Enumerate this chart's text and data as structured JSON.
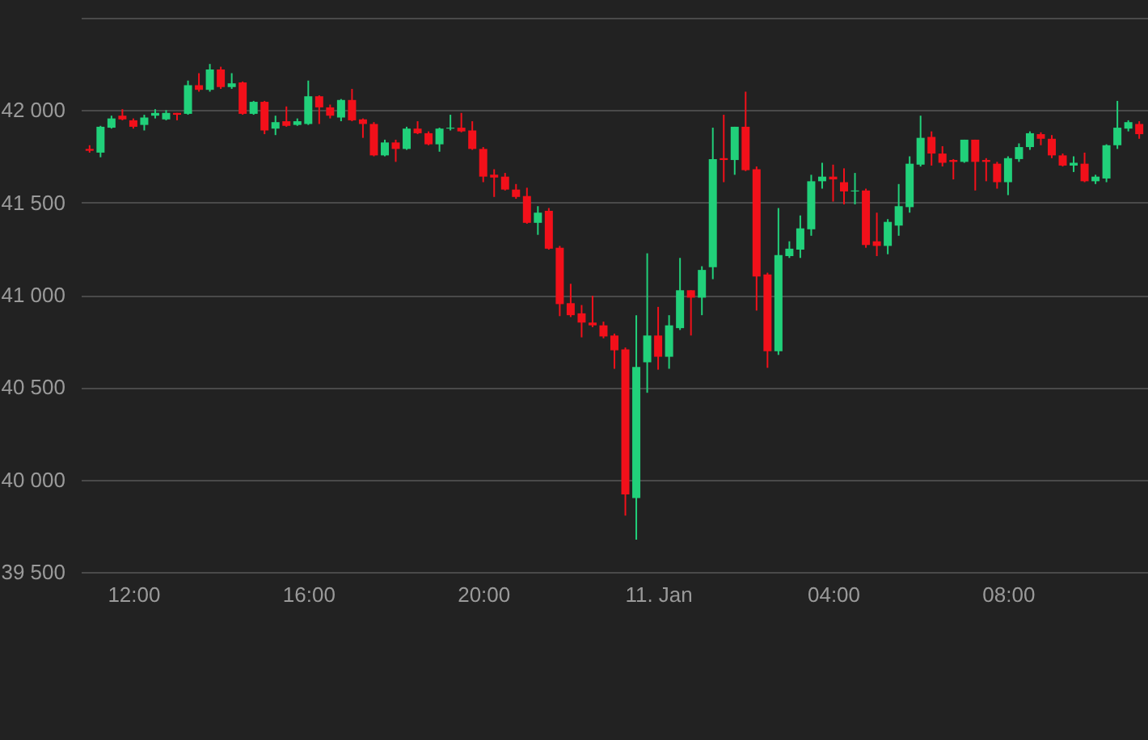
{
  "chart_data": {
    "type": "candlestick",
    "grid": "y",
    "xlim": [
      "--01-10T10:48",
      "--01-11T11:12"
    ],
    "xticks": [
      {
        "value": "--01-10T12:00",
        "label": "12:00"
      },
      {
        "value": "--01-10T16:00",
        "label": "16:00"
      },
      {
        "value": "--01-10T20:00",
        "label": "20:00"
      },
      {
        "value": "--01-11T00:00",
        "label": "11. Jan"
      },
      {
        "value": "--01-11T04:00",
        "label": "04:00"
      },
      {
        "value": "--01-11T08:00",
        "label": "08:00"
      }
    ],
    "ylim": [
      39500,
      42500
    ],
    "yticks": [
      {
        "value": 39500,
        "label": "39 500"
      },
      {
        "value": 40000,
        "label": "40 000"
      },
      {
        "value": 40500,
        "label": "40 500"
      },
      {
        "value": 41000,
        "label": "41 000"
      },
      {
        "value": 41500,
        "label": "41 500"
      },
      {
        "value": 42000,
        "label": "42 000"
      },
      {
        "value": 42500,
        "label": null
      }
    ],
    "x": [
      "--01-10T11:00",
      "--01-10T11:15",
      "--01-10T11:30",
      "--01-10T11:45",
      "--01-10T12:00",
      "--01-10T12:15",
      "--01-10T12:30",
      "--01-10T12:45",
      "--01-10T13:00",
      "--01-10T13:15",
      "--01-10T13:30",
      "--01-10T13:45",
      "--01-10T14:00",
      "--01-10T14:15",
      "--01-10T14:30",
      "--01-10T14:45",
      "--01-10T15:00",
      "--01-10T15:15",
      "--01-10T15:30",
      "--01-10T15:45",
      "--01-10T16:00",
      "--01-10T16:15",
      "--01-10T16:30",
      "--01-10T16:45",
      "--01-10T17:00",
      "--01-10T17:15",
      "--01-10T17:30",
      "--01-10T17:45",
      "--01-10T18:00",
      "--01-10T18:15",
      "--01-10T18:30",
      "--01-10T18:45",
      "--01-10T19:00",
      "--01-10T19:15",
      "--01-10T19:30",
      "--01-10T19:45",
      "--01-10T20:00",
      "--01-10T20:15",
      "--01-10T20:30",
      "--01-10T20:45",
      "--01-10T21:00",
      "--01-10T21:15",
      "--01-10T21:30",
      "--01-10T21:45",
      "--01-10T22:00",
      "--01-10T22:15",
      "--01-10T22:30",
      "--01-10T22:45",
      "--01-10T23:00",
      "--01-10T23:15",
      "--01-10T23:30",
      "--01-10T23:45",
      "--01-11T00:00",
      "--01-11T00:15",
      "--01-11T00:30",
      "--01-11T00:45",
      "--01-11T01:00",
      "--01-11T01:15",
      "--01-11T01:30",
      "--01-11T01:45",
      "--01-11T02:00",
      "--01-11T02:15",
      "--01-11T02:30",
      "--01-11T02:45",
      "--01-11T03:00",
      "--01-11T03:15",
      "--01-11T03:30",
      "--01-11T03:45",
      "--01-11T04:00",
      "--01-11T04:15",
      "--01-11T04:30",
      "--01-11T04:45",
      "--01-11T05:00",
      "--01-11T05:15",
      "--01-11T05:30",
      "--01-11T05:45",
      "--01-11T06:00",
      "--01-11T06:15",
      "--01-11T06:30",
      "--01-11T06:45",
      "--01-11T07:00",
      "--01-11T07:15",
      "--01-11T07:30",
      "--01-11T07:45",
      "--01-11T08:00",
      "--01-11T08:15",
      "--01-11T08:30",
      "--01-11T08:45",
      "--01-11T09:00",
      "--01-11T09:15",
      "--01-11T09:30",
      "--01-11T09:45",
      "--01-11T10:00",
      "--01-11T10:15",
      "--01-11T10:30",
      "--01-11T10:45",
      "--01-11T11:00"
    ],
    "ohlc": [
      [
        41790,
        41810,
        41770,
        41780
      ],
      [
        41770,
        41915,
        41745,
        41910
      ],
      [
        41905,
        41970,
        41900,
        41955
      ],
      [
        41970,
        42005,
        41945,
        41950
      ],
      [
        41945,
        41955,
        41900,
        41910
      ],
      [
        41920,
        41975,
        41890,
        41960
      ],
      [
        41970,
        42005,
        41955,
        41985
      ],
      [
        41950,
        42000,
        41945,
        41985
      ],
      [
        41985,
        41985,
        41945,
        41975
      ],
      [
        41980,
        42160,
        41975,
        42135
      ],
      [
        42135,
        42200,
        42100,
        42110
      ],
      [
        42110,
        42250,
        42100,
        42220
      ],
      [
        42220,
        42235,
        42115,
        42125
      ],
      [
        42125,
        42200,
        42115,
        42145
      ],
      [
        42150,
        42155,
        41975,
        41980
      ],
      [
        41980,
        42050,
        41975,
        42045
      ],
      [
        42045,
        42050,
        41870,
        41890
      ],
      [
        41900,
        41970,
        41865,
        41935
      ],
      [
        41940,
        42020,
        41910,
        41915
      ],
      [
        41920,
        41955,
        41915,
        41940
      ],
      [
        41925,
        42160,
        41920,
        42075
      ],
      [
        42075,
        42080,
        41925,
        42015
      ],
      [
        42015,
        42030,
        41955,
        41970
      ],
      [
        41960,
        42060,
        41940,
        42055
      ],
      [
        42055,
        42115,
        41940,
        41945
      ],
      [
        41950,
        41955,
        41850,
        41925
      ],
      [
        41925,
        41935,
        41750,
        41755
      ],
      [
        41755,
        41840,
        41750,
        41825
      ],
      [
        41825,
        41840,
        41720,
        41790
      ],
      [
        41790,
        41910,
        41785,
        41900
      ],
      [
        41900,
        41940,
        41870,
        41875
      ],
      [
        41875,
        41885,
        41810,
        41815
      ],
      [
        41815,
        41905,
        41775,
        41900
      ],
      [
        41900,
        41975,
        41890,
        41905
      ],
      [
        41905,
        41985,
        41880,
        41885
      ],
      [
        41890,
        41940,
        41785,
        41790
      ],
      [
        41790,
        41800,
        41610,
        41640
      ],
      [
        41650,
        41680,
        41530,
        41635
      ],
      [
        41640,
        41660,
        41565,
        41570
      ],
      [
        41570,
        41600,
        41520,
        41530
      ],
      [
        41535,
        41580,
        41385,
        41390
      ],
      [
        41390,
        41480,
        41325,
        41445
      ],
      [
        41455,
        41470,
        41245,
        41250
      ],
      [
        41255,
        41265,
        40885,
        40950
      ],
      [
        40955,
        41060,
        40880,
        40890
      ],
      [
        40900,
        40945,
        40770,
        40850
      ],
      [
        40850,
        40995,
        40825,
        40835
      ],
      [
        40835,
        40855,
        40765,
        40775
      ],
      [
        40780,
        40790,
        40600,
        40700
      ],
      [
        40705,
        40715,
        39805,
        39920
      ],
      [
        39900,
        40890,
        39675,
        40610
      ],
      [
        40635,
        41225,
        40470,
        40780
      ],
      [
        40780,
        40935,
        40595,
        40665
      ],
      [
        40665,
        40890,
        40600,
        40835
      ],
      [
        40820,
        41200,
        40810,
        41025
      ],
      [
        41025,
        41025,
        40780,
        40985
      ],
      [
        40985,
        41155,
        40890,
        41135
      ],
      [
        41150,
        41905,
        41085,
        41735
      ],
      [
        41740,
        41975,
        41610,
        41730
      ],
      [
        41730,
        41910,
        41650,
        41910
      ],
      [
        41910,
        42100,
        41670,
        41675
      ],
      [
        41680,
        41695,
        40915,
        41100
      ],
      [
        41110,
        41120,
        40605,
        40695
      ],
      [
        40695,
        41470,
        40675,
        41215
      ],
      [
        41210,
        41290,
        41200,
        41250
      ],
      [
        41245,
        41430,
        41200,
        41360
      ],
      [
        41355,
        41650,
        41320,
        41615
      ],
      [
        41615,
        41715,
        41575,
        41640
      ],
      [
        41640,
        41705,
        41505,
        41625
      ],
      [
        41610,
        41685,
        41490,
        41560
      ],
      [
        41560,
        41660,
        41490,
        41565
      ],
      [
        41565,
        41575,
        41255,
        41270
      ],
      [
        41290,
        41445,
        41210,
        41265
      ],
      [
        41265,
        41410,
        41220,
        41395
      ],
      [
        41375,
        41600,
        41320,
        41480
      ],
      [
        41475,
        41750,
        41445,
        41710
      ],
      [
        41705,
        41970,
        41695,
        41850
      ],
      [
        41855,
        41885,
        41700,
        41765
      ],
      [
        41765,
        41805,
        41695,
        41715
      ],
      [
        41730,
        41735,
        41625,
        41720
      ],
      [
        41720,
        41840,
        41715,
        41840
      ],
      [
        41840,
        41840,
        41565,
        41720
      ],
      [
        41730,
        41740,
        41615,
        41720
      ],
      [
        41710,
        41720,
        41575,
        41610
      ],
      [
        41610,
        41750,
        41540,
        41740
      ],
      [
        41735,
        41820,
        41720,
        41800
      ],
      [
        41800,
        41885,
        41785,
        41875
      ],
      [
        41870,
        41880,
        41810,
        41845
      ],
      [
        41845,
        41865,
        41740,
        41755
      ],
      [
        41755,
        41765,
        41695,
        41700
      ],
      [
        41700,
        41750,
        41665,
        41715
      ],
      [
        41710,
        41770,
        41610,
        41615
      ],
      [
        41615,
        41650,
        41600,
        41640
      ],
      [
        41630,
        41815,
        41610,
        41810
      ],
      [
        41810,
        42050,
        41790,
        41905
      ],
      [
        41900,
        41945,
        41885,
        41935
      ],
      [
        41925,
        41940,
        41845,
        41870
      ]
    ],
    "colors": [
      "#f2101a",
      "#21d07a",
      "#21d07a",
      "#f2101a",
      "#f2101a",
      "#21d07a",
      "#21d07a",
      "#21d07a",
      "#f2101a",
      "#21d07a",
      "#f2101a",
      "#21d07a",
      "#f2101a",
      "#21d07a",
      "#f2101a",
      "#21d07a",
      "#f2101a",
      "#21d07a",
      "#f2101a",
      "#21d07a",
      "#21d07a",
      "#f2101a",
      "#f2101a",
      "#21d07a",
      "#f2101a",
      "#f2101a",
      "#f2101a",
      "#21d07a",
      "#f2101a",
      "#21d07a",
      "#f2101a",
      "#f2101a",
      "#21d07a",
      "#21d07a",
      "#f2101a",
      "#f2101a",
      "#f2101a",
      "#f2101a",
      "#f2101a",
      "#f2101a",
      "#f2101a",
      "#21d07a",
      "#f2101a",
      "#f2101a",
      "#f2101a",
      "#f2101a",
      "#f2101a",
      "#f2101a",
      "#f2101a",
      "#f2101a",
      "#21d07a",
      "#21d07a",
      "#f2101a",
      "#21d07a",
      "#21d07a",
      "#f2101a",
      "#21d07a",
      "#21d07a",
      "#f2101a",
      "#21d07a",
      "#f2101a",
      "#f2101a",
      "#f2101a",
      "#21d07a",
      "#21d07a",
      "#21d07a",
      "#21d07a",
      "#21d07a",
      "#f2101a",
      "#f2101a",
      "#21d07a",
      "#f2101a",
      "#f2101a",
      "#21d07a",
      "#21d07a",
      "#21d07a",
      "#21d07a",
      "#f2101a",
      "#f2101a",
      "#f2101a",
      "#21d07a",
      "#f2101a",
      "#f2101a",
      "#f2101a",
      "#21d07a",
      "#21d07a",
      "#21d07a",
      "#f2101a",
      "#f2101a",
      "#f2101a",
      "#21d07a",
      "#f2101a",
      "#21d07a",
      "#21d07a",
      "#21d07a",
      "#21d07a",
      "#f2101a"
    ]
  }
}
